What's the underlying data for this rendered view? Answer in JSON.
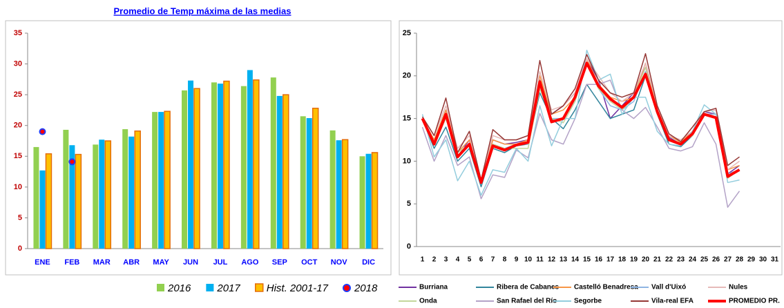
{
  "chart_data": [
    {
      "type": "bar",
      "title": "Promedio de Temp máxima de las medias",
      "categories": [
        "ENE",
        "FEB",
        "MAR",
        "ABR",
        "MAY",
        "JUN",
        "JUL",
        "AGO",
        "SEP",
        "OCT",
        "NOV",
        "DIC"
      ],
      "series": [
        {
          "name": "2016",
          "color": "#92d050",
          "values": [
            16.5,
            19.3,
            16.9,
            19.4,
            22.2,
            25.7,
            27.0,
            26.4,
            27.8,
            21.5,
            19.2,
            15.0
          ]
        },
        {
          "name": "2017",
          "color": "#00b0f0",
          "values": [
            12.7,
            16.8,
            17.7,
            18.2,
            22.2,
            27.3,
            26.8,
            29.0,
            24.8,
            21.2,
            17.6,
            15.4
          ]
        },
        {
          "name": "Hist. 2001-17",
          "color": "#ffc000",
          "edgecolor": "#e46c0a",
          "values": [
            15.4,
            15.3,
            17.5,
            19.1,
            22.3,
            26.0,
            27.2,
            27.4,
            25.0,
            22.8,
            17.7,
            15.6
          ]
        },
        {
          "name": "2018",
          "color": "#ff0000",
          "edgecolor": "#1f3cff",
          "style": "dot",
          "values": [
            19.0,
            14.1,
            null,
            null,
            null,
            null,
            null,
            null,
            null,
            null,
            null,
            null
          ]
        }
      ],
      "ylim": [
        0,
        35
      ],
      "yticks": [
        0,
        5,
        10,
        15,
        20,
        25,
        30,
        35
      ],
      "grid": false
    },
    {
      "type": "line",
      "categories": [
        1,
        2,
        3,
        4,
        5,
        6,
        7,
        8,
        9,
        10,
        11,
        12,
        13,
        14,
        15,
        16,
        17,
        18,
        19,
        20,
        21,
        22,
        23,
        24,
        25,
        26,
        27,
        28,
        29,
        30,
        31
      ],
      "series": [
        {
          "name": "Burriana",
          "color": "#7030a0",
          "values": [
            15,
            12.5,
            16,
            10.5,
            12.5,
            7.5,
            12.5,
            12,
            12.2,
            12.5,
            19.5,
            15.5,
            16.5,
            18,
            22,
            19.5,
            15,
            16.5,
            18,
            21,
            16,
            12.8,
            12,
            13.5,
            15.8,
            15.5,
            8.5,
            9.5,
            null,
            null,
            null
          ]
        },
        {
          "name": "Ribera de Cabanes",
          "color": "#31859c",
          "values": [
            15,
            11.5,
            14,
            10,
            11.5,
            7,
            11.5,
            11,
            11.8,
            12,
            18,
            15,
            13.8,
            16,
            19,
            17,
            15,
            15.5,
            16,
            20,
            15.5,
            12,
            11.7,
            13,
            15.5,
            15,
            8.5,
            9,
            null,
            null,
            null
          ]
        },
        {
          "name": "Castelló Benadresa",
          "color": "#f79646",
          "values": [
            15,
            12.5,
            16,
            11,
            12.5,
            7.5,
            12.5,
            12,
            12,
            12.5,
            20,
            15.5,
            16,
            17.5,
            22,
            19,
            17.5,
            17,
            17.5,
            21.5,
            16,
            13,
            12.2,
            13.5,
            15.5,
            15.5,
            9,
            9.5,
            null,
            null,
            null
          ]
        },
        {
          "name": "Vall d'Uixó",
          "color": "#8eb4e3",
          "values": [
            15,
            12,
            15,
            11,
            12,
            7.5,
            12,
            11.5,
            12,
            12,
            19,
            15,
            15,
            17,
            21.5,
            18.5,
            16.5,
            16,
            17,
            20.5,
            15.5,
            12.5,
            12,
            13,
            15.5,
            15.5,
            8.5,
            9,
            null,
            null,
            null
          ]
        },
        {
          "name": "Nules",
          "color": "#e6b9b8",
          "values": [
            15.2,
            13,
            16.5,
            11.5,
            13,
            7.8,
            13,
            12.5,
            12.5,
            13,
            20.5,
            16,
            16.5,
            18,
            22,
            20,
            18,
            17,
            18,
            21.5,
            16.5,
            13,
            12.5,
            13.5,
            15.8,
            16,
            9,
            10,
            null,
            null,
            null
          ]
        },
        {
          "name": "Onda",
          "color": "#c3d69b",
          "values": [
            14.8,
            12,
            15,
            11,
            12,
            7.5,
            12,
            11.5,
            11.5,
            11.5,
            18.5,
            15,
            14.5,
            17,
            21.5,
            18.5,
            17,
            16,
            17.5,
            21,
            15.5,
            12.5,
            12,
            13,
            15.5,
            15,
            8,
            9,
            null,
            null,
            null
          ]
        },
        {
          "name": "San Rafael del Río",
          "color": "#b3a2c7",
          "values": [
            14,
            10,
            13,
            9.5,
            10.5,
            5.6,
            8.4,
            8.1,
            11.3,
            10.4,
            15.6,
            12.5,
            12,
            15,
            19,
            19,
            19.5,
            16,
            15,
            16.3,
            14,
            11.5,
            11.2,
            11.7,
            14.5,
            12,
            4.6,
            6.5,
            null,
            null,
            null
          ]
        },
        {
          "name": "Segorbe",
          "color": "#93cddd",
          "values": [
            15.5,
            10.5,
            12.5,
            7.7,
            10,
            6,
            9,
            8.7,
            11.5,
            10,
            16.5,
            11.8,
            15,
            15,
            23,
            19.5,
            20.2,
            15.5,
            17.5,
            17.5,
            13.5,
            12,
            11.8,
            13.5,
            16.6,
            15.5,
            7.5,
            7.8,
            null,
            null,
            null
          ]
        },
        {
          "name": "Vila-real EFA",
          "color": "#953735",
          "values": [
            15.2,
            13,
            17.4,
            11,
            13.5,
            7.8,
            13.7,
            12.5,
            12.5,
            13,
            21.8,
            15.5,
            16.5,
            18.5,
            22.5,
            19.5,
            18,
            17.5,
            18,
            22.6,
            16.5,
            13.2,
            12.3,
            14,
            15.8,
            16.2,
            9.5,
            10.5,
            null,
            null,
            null
          ]
        },
        {
          "name": "PROMEDIO PR.",
          "color": "#ff0000",
          "width": 4,
          "values": [
            15,
            12,
            15.5,
            10.5,
            12,
            7.5,
            11.8,
            11.3,
            11.9,
            12.2,
            19.3,
            14.6,
            15,
            17.5,
            21.5,
            18.8,
            17.3,
            16.3,
            17.5,
            20.2,
            15.8,
            12.5,
            12,
            13.2,
            15.5,
            15.1,
            8.2,
            9,
            null,
            null,
            null
          ]
        }
      ],
      "ylim": [
        0,
        25
      ],
      "yticks": [
        0,
        5,
        10,
        15,
        20,
        25
      ],
      "grid": false
    }
  ]
}
